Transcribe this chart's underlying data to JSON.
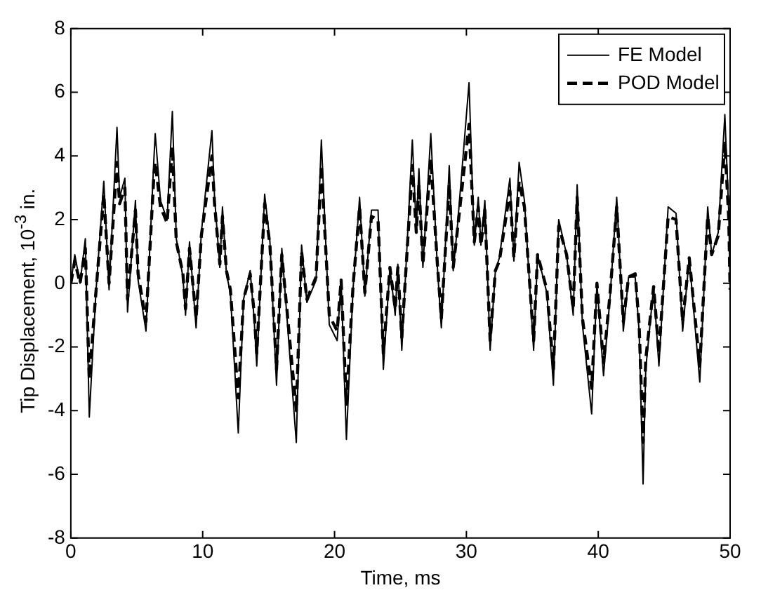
{
  "chart_data": {
    "type": "line",
    "xlabel": "Time, ms",
    "ylabel": "Tip Displacement, 10$^{-3}$ in.",
    "xlim": [
      0,
      50
    ],
    "ylim": [
      -8,
      8
    ],
    "xticks": [
      0,
      10,
      20,
      30,
      40,
      50
    ],
    "yticks": [
      -8,
      -6,
      -4,
      -2,
      0,
      2,
      4,
      6,
      8
    ],
    "grid": false,
    "legend": "top right",
    "marker": "none",
    "x": [
      0,
      0.3,
      0.7,
      1.1,
      1.4,
      1.9,
      2.5,
      2.9,
      3.5,
      3.7,
      4.1,
      4.3,
      4.9,
      5.1,
      5.7,
      6.3,
      6.4,
      6.8,
      7.3,
      7.7,
      8.0,
      8.5,
      8.7,
      9.0,
      9.5,
      9.9,
      10.7,
      10.9,
      11.3,
      11.5,
      11.8,
      12.1,
      12.7,
      13.1,
      13.6,
      13.9,
      14.1,
      14.7,
      15.1,
      15.6,
      16.0,
      17.1,
      17.5,
      17.9,
      18.6,
      19.0,
      19.6,
      20.2,
      20.5,
      20.9,
      21.4,
      21.9,
      22.3,
      22.8,
      23.3,
      23.7,
      24.2,
      24.6,
      24.8,
      25.1,
      25.9,
      26.2,
      26.4,
      26.7,
      27.3,
      27.8,
      28.1,
      28.7,
      29.0,
      29.3,
      30.2,
      30.6,
      30.9,
      31.1,
      31.4,
      31.8,
      32.2,
      32.5,
      33.3,
      33.6,
      34.0,
      34.4,
      35.1,
      35.4,
      36.1,
      36.6,
      37.0,
      37.6,
      38.1,
      38.4,
      38.8,
      39.5,
      39.9,
      40.4,
      40.9,
      41.4,
      41.9,
      42.3,
      42.8,
      43.1,
      43.4,
      43.6,
      44.2,
      44.6,
      45.3,
      45.9,
      46.4,
      46.9,
      47.7,
      48.3,
      48.6,
      49.1,
      49.6,
      49.9,
      50
    ],
    "series": [
      {
        "name": "FE Model",
        "color": "#000000",
        "line_style": "solid",
        "values": [
          0,
          0.9,
          0,
          1.4,
          -4.2,
          -0.3,
          3.2,
          -0.2,
          4.9,
          2.7,
          3.3,
          -0.9,
          2.6,
          0.1,
          -1.5,
          3.9,
          4.7,
          2.6,
          2.0,
          5.4,
          1.4,
          0.2,
          -1.0,
          1.3,
          -1.4,
          1.6,
          4.8,
          2.7,
          0.5,
          2.4,
          0.3,
          -0.3,
          -4.7,
          -0.5,
          0.4,
          -1.1,
          -2.6,
          2.8,
          1.3,
          -3.2,
          1.1,
          -5.0,
          1.2,
          -0.6,
          0.1,
          4.5,
          -1.3,
          -1.8,
          0.1,
          -4.9,
          -0.2,
          2.7,
          -0.4,
          2.3,
          2.3,
          -2.7,
          0.5,
          -1.0,
          0.6,
          -2.1,
          4.5,
          1.7,
          3.6,
          0.5,
          4.7,
          0.5,
          -1.4,
          3.7,
          0.4,
          1.7,
          6.3,
          1.2,
          2.7,
          1.2,
          2.6,
          -2.1,
          0.4,
          0.8,
          3.3,
          0.7,
          3.8,
          2.6,
          -2.1,
          0.9,
          -0.3,
          -3.2,
          2.0,
          0.9,
          -1.0,
          3.1,
          -1.3,
          -4.1,
          0,
          -2.9,
          -0.4,
          2.7,
          -1.5,
          0.2,
          0.2,
          -1.5,
          -6.3,
          -2.7,
          -0.1,
          -2.6,
          2.4,
          2.2,
          -1.5,
          0.8,
          -3.1,
          2.4,
          0.9,
          1.6,
          5.3,
          2.2,
          -0.3
        ]
      },
      {
        "name": "POD Model",
        "color": "#000000",
        "line_style": "dashed",
        "values": [
          0,
          0.7,
          0,
          1.1,
          -3.0,
          -0.3,
          2.8,
          0,
          3.8,
          2.5,
          3.0,
          -0.5,
          2.3,
          0.3,
          -1.2,
          3.4,
          3.8,
          2.4,
          1.9,
          4.3,
          1.3,
          0.3,
          -0.8,
          1.1,
          -1.1,
          1.5,
          4.0,
          2.5,
          0.6,
          2.1,
          0.4,
          -0.2,
          -3.6,
          -0.5,
          0.3,
          -0.9,
          -2.2,
          2.5,
          1.2,
          -2.7,
          0.9,
          -4.0,
          1.0,
          -0.5,
          0.2,
          3.7,
          -1.0,
          -1.5,
          0.1,
          -3.8,
          -0.1,
          2.4,
          -0.3,
          2.1,
          2.0,
          -2.2,
          0.5,
          -0.8,
          0.5,
          -1.7,
          3.7,
          1.6,
          3.1,
          0.6,
          3.9,
          0.6,
          -1.1,
          3.1,
          0.5,
          1.6,
          5.0,
          1.3,
          2.4,
          1.2,
          2.3,
          -1.8,
          0.4,
          0.7,
          2.9,
          0.8,
          3.2,
          2.4,
          -1.8,
          0.9,
          -0.2,
          -2.7,
          1.8,
          0.9,
          -0.8,
          2.7,
          -1.1,
          -3.3,
          0,
          -2.5,
          -0.3,
          2.4,
          -1.2,
          0.2,
          0.3,
          -1.3,
          -5.0,
          -2.4,
          -0.1,
          -2.2,
          2.1,
          2.0,
          -1.2,
          0.8,
          -2.6,
          2.1,
          0.9,
          1.5,
          4.4,
          2.0,
          -0.2
        ]
      }
    ]
  }
}
